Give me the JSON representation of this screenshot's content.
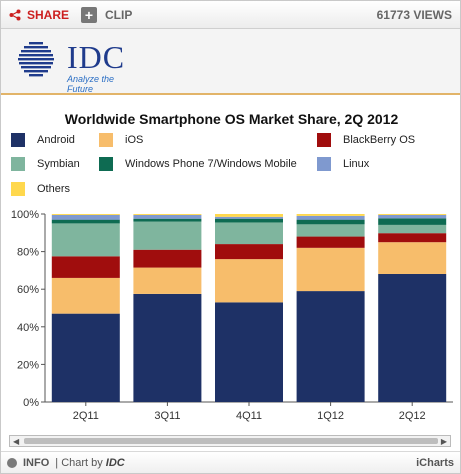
{
  "header": {
    "share_label": "SHARE",
    "clip_label": "CLIP",
    "views_label": "61773 VIEWS"
  },
  "brand": {
    "logo_text": "IDC",
    "tagline": "Analyze the Future"
  },
  "colors": {
    "android": "#1e3166",
    "ios": "#f7bd6b",
    "blackberry": "#a00d0d",
    "symbian": "#7fb59e",
    "windows": "#0e6b52",
    "linux": "#7f99cf",
    "others": "#ffd84d"
  },
  "chart_data": {
    "type": "bar",
    "stacked": true,
    "title": "Worldwide Smartphone OS Market Share, 2Q 2012",
    "categories": [
      "2Q11",
      "3Q11",
      "4Q11",
      "1Q12",
      "2Q12"
    ],
    "series": [
      {
        "name": "Android",
        "values": [
          47,
          57.5,
          53,
          59,
          68.1
        ]
      },
      {
        "name": "iOS",
        "values": [
          19,
          14,
          23,
          23,
          16.9
        ]
      },
      {
        "name": "BlackBerry OS",
        "values": [
          11.5,
          9.5,
          8,
          6,
          4.8
        ]
      },
      {
        "name": "Symbian",
        "values": [
          17.5,
          15,
          11.5,
          6.5,
          4.4
        ]
      },
      {
        "name": "Windows Phone 7/Windows Mobile",
        "values": [
          2,
          1.5,
          2,
          2.5,
          3.5
        ]
      },
      {
        "name": "Linux",
        "values": [
          2.5,
          2,
          1,
          2,
          1.8
        ]
      },
      {
        "name": "Others",
        "values": [
          0.5,
          0.5,
          1.5,
          1,
          0.5
        ]
      }
    ],
    "yticks": [
      "0%",
      "20%",
      "40%",
      "60%",
      "80%",
      "100%"
    ],
    "ylim": [
      0,
      100
    ],
    "legend": "top",
    "grid": false
  },
  "footer": {
    "info_label": "INFO",
    "chart_by_label": "| Chart by",
    "chart_by_brand": "IDC",
    "icharts_label": "iCharts"
  }
}
